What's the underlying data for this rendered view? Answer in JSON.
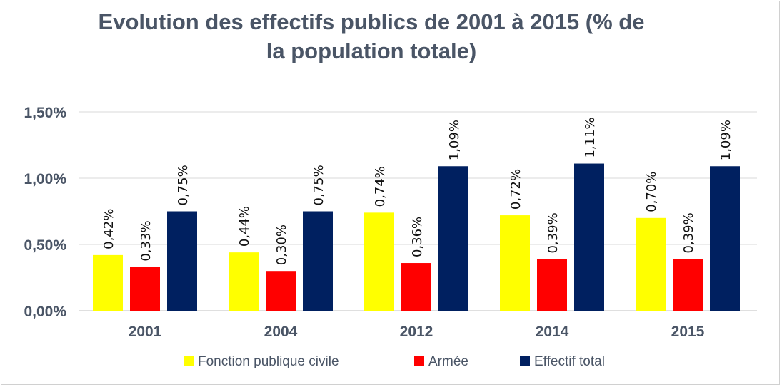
{
  "chart_data": {
    "type": "bar",
    "title": "Evolution des effectifs publics de 2001 à 2015 (%  de\nla population totale)",
    "categories": [
      "2001",
      "2004",
      "2012",
      "2014",
      "2015"
    ],
    "ylim": [
      0,
      1.5
    ],
    "yticks": [
      0,
      0.5,
      1.0,
      1.5
    ],
    "ytick_labels": [
      "0,00%",
      "0,50%",
      "1,00%",
      "1,50%"
    ],
    "grid": true,
    "legend_position": "bottom",
    "series": [
      {
        "name": "Fonction publique civile",
        "color": "#ffff00",
        "values": [
          0.42,
          0.44,
          0.74,
          0.72,
          0.7
        ],
        "labels": [
          "0,42%",
          "0,44%",
          "0,74%",
          "0,72%",
          "0,70%"
        ]
      },
      {
        "name": "Armée",
        "color": "#ff0000",
        "values": [
          0.33,
          0.3,
          0.36,
          0.39,
          0.39
        ],
        "labels": [
          "0,33%",
          "0,30%",
          "0,36%",
          "0,39%",
          "0,39%"
        ]
      },
      {
        "name": "Effectif total",
        "color": "#002060",
        "values": [
          0.75,
          0.75,
          1.09,
          1.11,
          1.09
        ],
        "labels": [
          "0,75%",
          "0,75%",
          "1,09%",
          "1,11%",
          "1,09%"
        ]
      }
    ]
  }
}
